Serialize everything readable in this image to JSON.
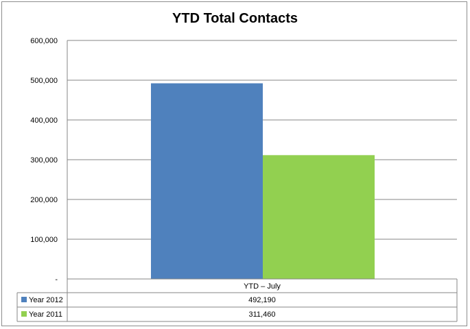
{
  "chart_data": {
    "type": "bar",
    "title": "YTD Total Contacts",
    "categories": [
      "YTD – July"
    ],
    "series": [
      {
        "name": "Year 2012",
        "values": [
          492190
        ],
        "value_labels": [
          "492,190"
        ],
        "color": "#4f81bd"
      },
      {
        "name": "Year 2011",
        "values": [
          311460
        ],
        "value_labels": [
          "311,460"
        ],
        "color": "#92d050"
      }
    ],
    "ylim": [
      0,
      600000
    ],
    "yticks": [
      0,
      100000,
      200000,
      300000,
      400000,
      500000,
      600000
    ],
    "ytick_labels": [
      "-",
      "100,000",
      "200,000",
      "300,000",
      "400,000",
      "500,000",
      "600,000"
    ],
    "grid": true,
    "legend": "data-table",
    "gridline_color": "#868686"
  }
}
